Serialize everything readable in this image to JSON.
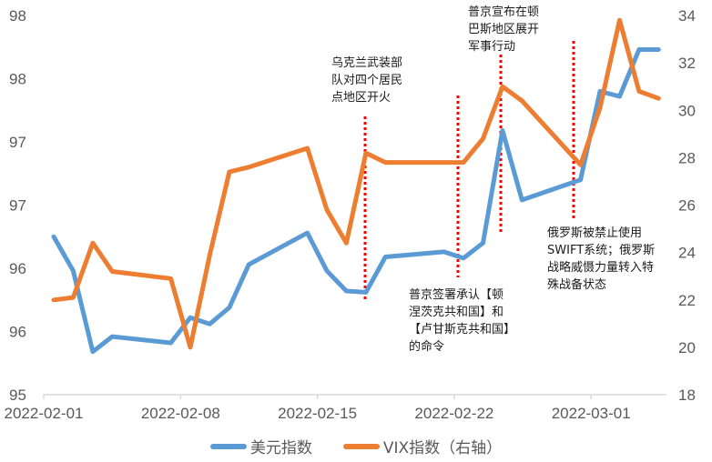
{
  "chart_data": {
    "type": "line",
    "title": "",
    "xlabel": "",
    "ylabel": "",
    "y2label": "",
    "x": [
      "2022-02-01",
      "2022-02-02",
      "2022-02-03",
      "2022-02-04",
      "2022-02-07",
      "2022-02-08",
      "2022-02-09",
      "2022-02-10",
      "2022-02-11",
      "2022-02-14",
      "2022-02-15",
      "2022-02-16",
      "2022-02-17",
      "2022-02-18",
      "2022-02-21",
      "2022-02-22",
      "2022-02-23",
      "2022-02-24",
      "2022-02-25",
      "2022-02-28",
      "2022-03-01",
      "2022-03-02",
      "2022-03-03",
      "2022-03-04"
    ],
    "x_tick_labels": [
      "2022-02-01",
      "2022-02-08",
      "2022-02-15",
      "2022-02-22",
      "2022-03-01"
    ],
    "y_tick_labels": [
      "95",
      "96",
      "96",
      "97",
      "97",
      "98",
      "98"
    ],
    "y_ticks": [
      95.0,
      95.5,
      96.0,
      96.5,
      97.0,
      97.5,
      98.0
    ],
    "ylim": [
      95,
      98
    ],
    "y2_tick_labels": [
      "18",
      "20",
      "22",
      "24",
      "26",
      "28",
      "30",
      "32",
      "34"
    ],
    "y2lim": [
      18,
      34
    ],
    "grid": false,
    "legend_position": "bottom",
    "series": [
      {
        "name": "美元指数",
        "axis": "left",
        "color": "#5B9BD5",
        "values": [
          96.25,
          95.98,
          95.34,
          95.46,
          95.41,
          95.61,
          95.56,
          95.69,
          96.03,
          96.28,
          95.98,
          95.82,
          95.81,
          96.09,
          96.13,
          96.08,
          96.2,
          97.09,
          96.54,
          96.7,
          97.4,
          97.36,
          97.73,
          97.73
        ]
      },
      {
        "name": "VIX指数（右轴）",
        "axis": "right",
        "color": "#ED7D31",
        "values": [
          22.0,
          22.1,
          24.4,
          23.2,
          22.9,
          20.0,
          23.9,
          27.4,
          27.6,
          28.4,
          25.8,
          24.4,
          28.2,
          27.8,
          27.8,
          27.8,
          28.8,
          31.0,
          30.4,
          27.7,
          30.1,
          33.8,
          30.8,
          30.5
        ]
      }
    ],
    "annotations": [
      {
        "x": "2022-02-17",
        "text": [
          "乌克兰武装部",
          "队对四个居民",
          "点地区开火"
        ]
      },
      {
        "x": "2022-02-22",
        "text": [
          "普京签署承认【顿",
          "涅茨克共和国】和",
          "【卢甘斯克共和国】",
          "的命令"
        ]
      },
      {
        "x": "2022-02-24",
        "text": [
          "普京宣布在顿",
          "巴斯地区展开",
          "军事行动"
        ]
      },
      {
        "x": "2022-02-28",
        "text": [
          "俄罗斯被禁止使用",
          "SWIFT系统；俄罗斯",
          "战略威慑力量转入特",
          "殊战备状态"
        ]
      }
    ]
  },
  "legend": {
    "items": [
      {
        "label": "美元指数",
        "color": "#5B9BD5"
      },
      {
        "label": "VIX指数（右轴）",
        "color": "#ED7D31"
      }
    ]
  },
  "colors": {
    "usd": "#5B9BD5",
    "vix": "#ED7D31",
    "marker_line": "#FF0000",
    "axis": "#D9D9D9",
    "text": "#595959"
  }
}
